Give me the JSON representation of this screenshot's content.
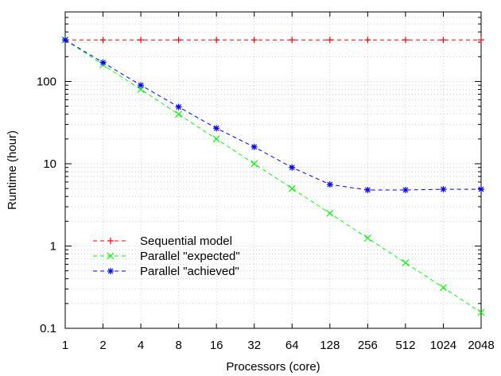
{
  "chart_data": {
    "type": "line",
    "xlabel": "Processors (core)",
    "ylabel": "Runtime (hour)",
    "x_scale": "log2",
    "y_scale": "log10",
    "x_ticks": [
      "1",
      "2",
      "4",
      "8",
      "16",
      "32",
      "64",
      "128",
      "256",
      "512",
      "1024",
      "2048"
    ],
    "y_ticks": [
      "0.1",
      "1",
      "10",
      "100"
    ],
    "xlim": [
      1,
      2048
    ],
    "ylim": [
      0.1,
      700
    ],
    "grid": true,
    "legend_position": "bottom-left",
    "x": [
      1,
      2,
      4,
      8,
      16,
      32,
      64,
      128,
      256,
      512,
      1024,
      2048
    ],
    "series": [
      {
        "name": "Sequential model",
        "color": "#ff0000",
        "marker": "plus",
        "values": [
          320,
          320,
          320,
          320,
          320,
          320,
          320,
          320,
          320,
          320,
          320,
          320
        ]
      },
      {
        "name": "Parallel \"expected\"",
        "color": "#00ff00",
        "marker": "cross",
        "values": [
          320,
          160,
          80,
          40,
          20,
          10,
          5,
          2.5,
          1.25,
          0.625,
          0.3125,
          0.156
        ]
      },
      {
        "name": "Parallel \"achieved\"",
        "color": "#0000ff",
        "marker": "star",
        "values": [
          320,
          170,
          90,
          49,
          27,
          16,
          9,
          5.6,
          4.8,
          4.8,
          4.9,
          4.9
        ]
      }
    ]
  }
}
